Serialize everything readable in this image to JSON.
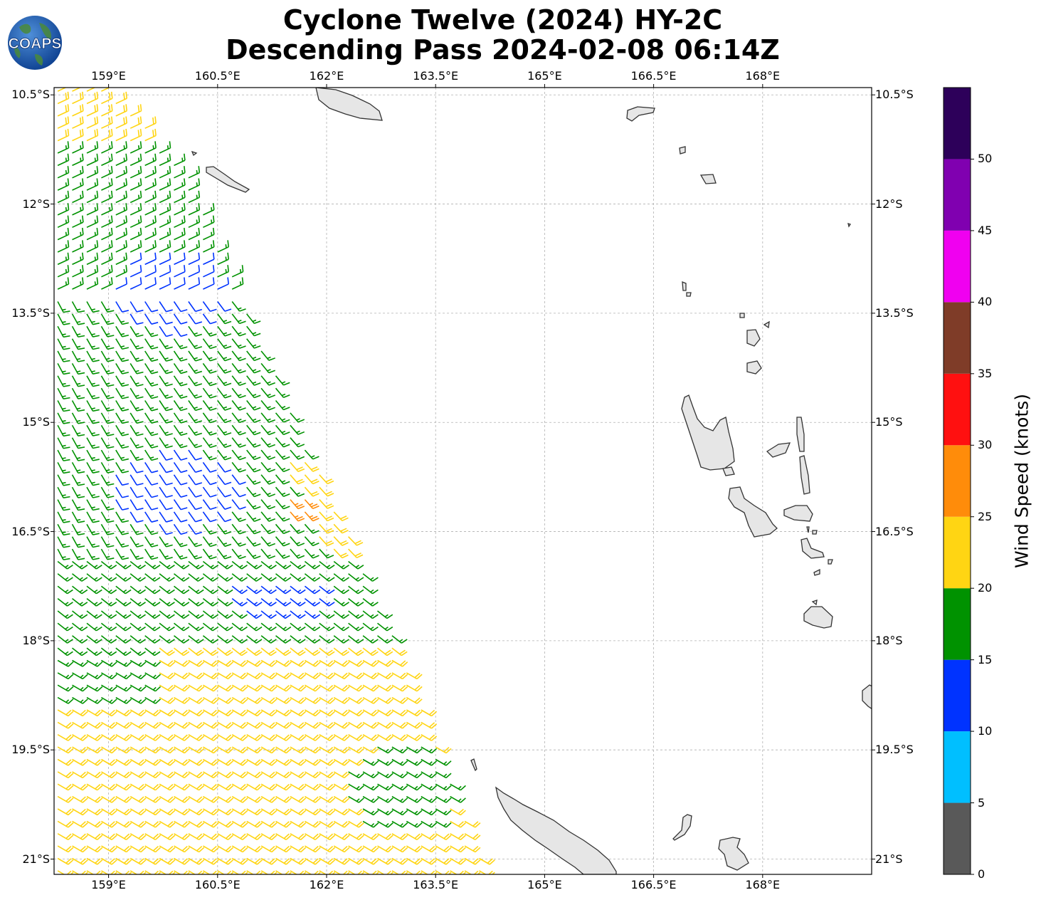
{
  "title": {
    "line1": "Cyclone Twelve (2024) HY-2C",
    "line2": "Descending Pass 2024-02-08 06:14Z"
  },
  "logo": {
    "text": "COAPS",
    "icon": "globe-logo-icon"
  },
  "map": {
    "lon_range": [
      158.25,
      169.5
    ],
    "lat_range": [
      -21.21,
      -10.4
    ],
    "lon_ticks": [
      {
        "value": 159.0,
        "label": "159°E"
      },
      {
        "value": 160.5,
        "label": "160.5°E"
      },
      {
        "value": 162.0,
        "label": "162°E"
      },
      {
        "value": 163.5,
        "label": "163.5°E"
      },
      {
        "value": 165.0,
        "label": "165°E"
      },
      {
        "value": 166.5,
        "label": "166.5°E"
      },
      {
        "value": 168.0,
        "label": "168°E"
      }
    ],
    "lat_ticks": [
      {
        "value": -10.5,
        "label": "10.5°S"
      },
      {
        "value": -12.0,
        "label": "12°S"
      },
      {
        "value": -13.5,
        "label": "13.5°S"
      },
      {
        "value": -15.0,
        "label": "15°S"
      },
      {
        "value": -16.5,
        "label": "16.5°S"
      },
      {
        "value": -18.0,
        "label": "18°S"
      },
      {
        "value": -19.5,
        "label": "19.5°S"
      },
      {
        "value": -21.0,
        "label": "21°S"
      }
    ],
    "gridlines": true,
    "land_color": "#e6e6e6",
    "coast_color": "#333333"
  },
  "colorbar": {
    "label": "Wind Speed (knots)",
    "tick_labels": [
      "0",
      "5",
      "10",
      "15",
      "20",
      "25",
      "30",
      "35",
      "40",
      "45",
      "50"
    ],
    "bins": [
      {
        "min": 0,
        "max": 5,
        "color": "#595959"
      },
      {
        "min": 5,
        "max": 10,
        "color": "#00bfff"
      },
      {
        "min": 10,
        "max": 15,
        "color": "#0033ff"
      },
      {
        "min": 15,
        "max": 20,
        "color": "#009200"
      },
      {
        "min": 20,
        "max": 25,
        "color": "#ffd513"
      },
      {
        "min": 25,
        "max": 30,
        "color": "#ff8c0a"
      },
      {
        "min": 30,
        "max": 35,
        "color": "#ff1010"
      },
      {
        "min": 35,
        "max": 40,
        "color": "#7f3c28"
      },
      {
        "min": 40,
        "max": 45,
        "color": "#f000f0"
      },
      {
        "min": 45,
        "max": 50,
        "color": "#8000b0"
      },
      {
        "min": 50,
        "max": 55,
        "color": "#2d005a"
      }
    ]
  },
  "chart_data": {
    "type": "wind-barb-map",
    "title": "Cyclone Twelve (2024) HY-2C Descending Pass 2024-02-08 06:14Z",
    "xlabel": "",
    "ylabel": "",
    "colorbar_label": "Wind Speed (knots)",
    "swath_west_edge_lon": 158.25,
    "swath_east_edge_points": [
      [
        159.0,
        -10.5
      ],
      [
        160.1,
        -11.5
      ],
      [
        160.9,
        -13.5
      ],
      [
        161.6,
        -15.0
      ],
      [
        162.5,
        -17.0
      ],
      [
        163.5,
        -19.3
      ],
      [
        164.2,
        -21.2
      ]
    ],
    "wind_regions": [
      {
        "name": "north-band-yellow",
        "lat_range": [
          -10.5,
          -11.2
        ],
        "speed_knots": 22
      },
      {
        "name": "north-band-green",
        "lat_range": [
          -11.2,
          -13.0
        ],
        "speed_knots": 17
      },
      {
        "name": "blue-core-north",
        "center": [
          159.8,
          -13.2
        ],
        "speed_knots": 12
      },
      {
        "name": "blue-core-mid",
        "center": [
          159.9,
          -15.9
        ],
        "speed_knots": 12
      },
      {
        "name": "blue-core-south",
        "center": [
          161.3,
          -17.4
        ],
        "speed_knots": 13
      },
      {
        "name": "orange-patch",
        "center": [
          161.6,
          -16.1
        ],
        "speed_knots": 27
      },
      {
        "name": "south-band-yellow",
        "lat_range": [
          -18.0,
          -21.2
        ],
        "speed_knots": 22
      },
      {
        "name": "south-east-green",
        "center": [
          163.0,
          -20.0
        ],
        "speed_knots": 17
      }
    ]
  }
}
